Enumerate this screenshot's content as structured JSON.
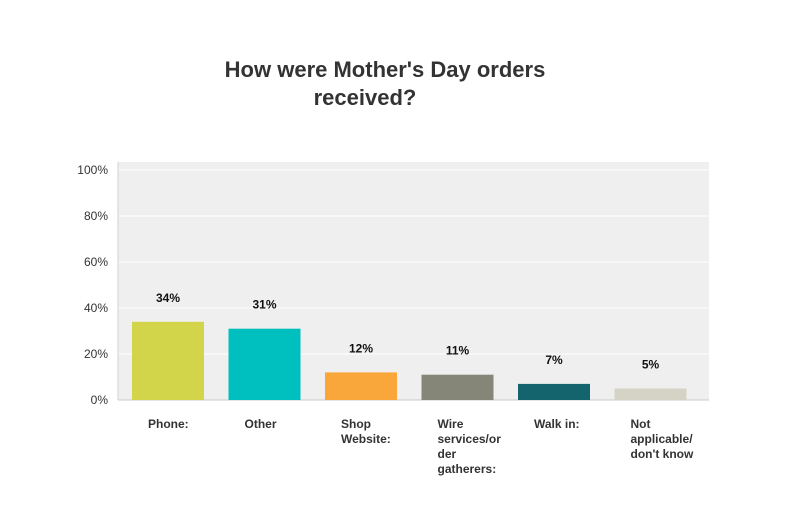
{
  "chart_data": {
    "type": "bar",
    "title_lines": [
      "How were Mother's Day orders",
      "received?"
    ],
    "categories": [
      [
        "Phone:"
      ],
      [
        "Other"
      ],
      [
        "Shop",
        "Website:"
      ],
      [
        "Wire",
        "services/or",
        "der",
        "gatherers:"
      ],
      [
        "Walk in:"
      ],
      [
        "Not",
        "applicable/",
        "don't know"
      ]
    ],
    "values": [
      34,
      31,
      12,
      11,
      7,
      5
    ],
    "data_labels": [
      "34%",
      "31%",
      "12%",
      "11%",
      "7%",
      "5%"
    ],
    "bar_colors": [
      "#d2d54a",
      "#00bfbf",
      "#f9a63b",
      "#858578",
      "#13646d",
      "#d4d3c5"
    ],
    "ylim": [
      0,
      100
    ],
    "y_ticks": [
      0,
      20,
      40,
      60,
      80,
      100
    ],
    "y_tick_labels": [
      "0%",
      "20%",
      "40%",
      "60%",
      "80%",
      "100%"
    ],
    "grid": true,
    "plot_background": "#efefef",
    "xlabel": "",
    "ylabel": ""
  }
}
